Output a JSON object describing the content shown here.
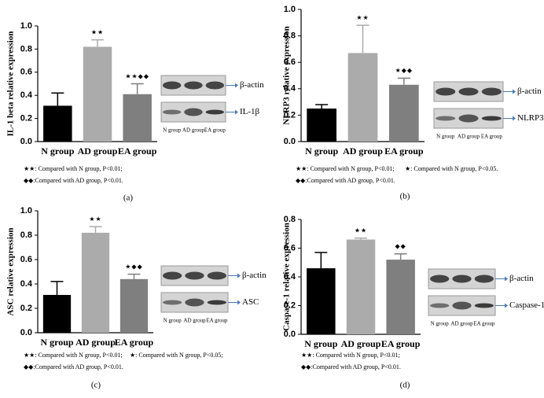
{
  "chart_data": [
    {
      "type": "bar",
      "y_label": "IL-1 beta relative expression",
      "categories": [
        "N group",
        "AD group",
        "EA group"
      ],
      "values": [
        0.31,
        0.82,
        0.41
      ],
      "errors": [
        0.11,
        0.06,
        0.09
      ],
      "colors": [
        "#000000",
        "#ababab",
        "#7f7f7f"
      ],
      "annotations": [
        null,
        "★★",
        "★★◆◆"
      ],
      "ylim": [
        0,
        1
      ],
      "yticks": [
        {
          "value": 0,
          "label": "0.0"
        },
        0.2,
        0.4,
        0.6,
        0.8,
        {
          "value": 1,
          "label": "1.0"
        }
      ],
      "blot_labels": [
        "β-actin",
        "IL-1β"
      ],
      "lanes": [
        "N group",
        "AD group",
        "EA group"
      ],
      "notes": [
        "★★: Compared with N group, P<0.01;",
        "◆◆:Compared with AD group, P<0.01."
      ],
      "panel_label": "(a)"
    },
    {
      "type": "bar",
      "y_label": "NLRP3 relative expression",
      "categories": [
        "N group",
        "AD group",
        "EA group"
      ],
      "values": [
        0.25,
        0.67,
        0.43
      ],
      "errors": [
        0.03,
        0.21,
        0.05
      ],
      "colors": [
        "#000000",
        "#ababab",
        "#7f7f7f"
      ],
      "annotations": [
        null,
        "★★",
        "★◆◆"
      ],
      "ylim": [
        0,
        1
      ],
      "yticks": [
        {
          "value": 0,
          "label": "0.0"
        },
        0.2,
        0.4,
        0.6,
        0.8,
        {
          "value": 1,
          "label": "1.0"
        }
      ],
      "blot_labels": [
        "β-actin",
        "NLRP3"
      ],
      "lanes": [
        "N group",
        "AD group",
        "EA group"
      ],
      "notes": [
        "★★: Compared with N group, P<0.01;",
        "★: Compared with N group, P<0.05.",
        "◆◆:Compared with AD group, P<0.01."
      ],
      "panel_label": "(b)"
    },
    {
      "type": "bar",
      "y_label": "ASC relative expression",
      "categories": [
        "N group",
        "AD group",
        "EA group"
      ],
      "values": [
        0.31,
        0.82,
        0.44
      ],
      "errors": [
        0.11,
        0.05,
        0.04
      ],
      "colors": [
        "#000000",
        "#ababab",
        "#7f7f7f"
      ],
      "annotations": [
        null,
        "★★",
        "★◆◆"
      ],
      "ylim": [
        0,
        1
      ],
      "yticks": [
        {
          "value": 0,
          "label": "0.0"
        },
        0.2,
        0.4,
        0.6,
        0.8,
        {
          "value": 1,
          "label": "1.0"
        }
      ],
      "blot_labels": [
        "β-actin",
        "ASC"
      ],
      "lanes": [
        "N group",
        "AD group",
        "EA group"
      ],
      "notes": [
        "★★: Compared with N group, P<0.01;",
        "★: Compared with N group, P<0.05;",
        "◆◆:Compared with AD group, P<0.01."
      ],
      "panel_label": "(c)"
    },
    {
      "type": "bar",
      "y_label": "Caspase-1 relative expression",
      "categories": [
        "N group",
        "AD group",
        "EA group"
      ],
      "values": [
        0.46,
        0.66,
        0.52
      ],
      "errors": [
        0.11,
        0.01,
        0.04
      ],
      "colors": [
        "#000000",
        "#ababab",
        "#7f7f7f"
      ],
      "annotations": [
        null,
        "★★",
        "◆◆"
      ],
      "ylim": [
        0,
        0.8
      ],
      "yticks": [
        {
          "value": 0,
          "label": "0.0"
        },
        0.2,
        0.4,
        0.6,
        0.8
      ],
      "blot_labels": [
        "β-actin",
        "Caspase-1"
      ],
      "lanes": [
        "N group",
        "AD group",
        "EA group"
      ],
      "notes": [
        "★★: Compared with N group, P<0.01;",
        "◆◆:Compared with AD group, P<0.01."
      ],
      "panel_label": "(d)"
    }
  ]
}
